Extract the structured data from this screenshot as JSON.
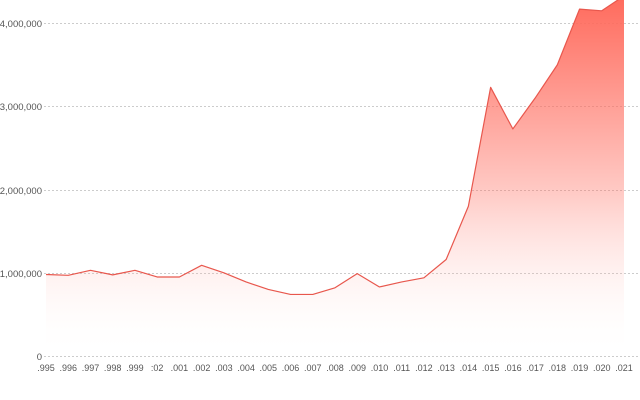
{
  "chart_data": {
    "type": "area",
    "categories": [
      ".995",
      ".996",
      ".997",
      ".998",
      ".999",
      ":02",
      ".001",
      ".002",
      ".003",
      ".004",
      ".005",
      ".006",
      ".007",
      ".008",
      ".009",
      ".010",
      ".011",
      ".012",
      ".013",
      ".014",
      ".015",
      ".016",
      ".017",
      ".018",
      ".019",
      ".020",
      ".021"
    ],
    "values": [
      980000,
      970000,
      1030000,
      975000,
      1030000,
      950000,
      950000,
      1090000,
      1000000,
      890000,
      800000,
      740000,
      740000,
      820000,
      990000,
      830000,
      890000,
      940000,
      1160000,
      1800000,
      3230000,
      2730000,
      3100000,
      3500000,
      4170000,
      4150000,
      4330000
    ],
    "y_ticks": [
      "0",
      "1,000,000",
      "2,000,000",
      "3,000,000",
      "4,000,000"
    ],
    "y_tick_values": [
      0,
      1000000,
      2000000,
      3000000,
      4000000
    ],
    "ylim": [
      0,
      4280000
    ],
    "grid": true,
    "legend": "none",
    "title": "",
    "xlabel": "",
    "ylabel": "",
    "colors": {
      "line": "#e8574d",
      "fill_top": "#ff6a5c",
      "fill_bottom": "#ffffff",
      "grid": "#cccccc",
      "tick_text": "#555555"
    }
  }
}
